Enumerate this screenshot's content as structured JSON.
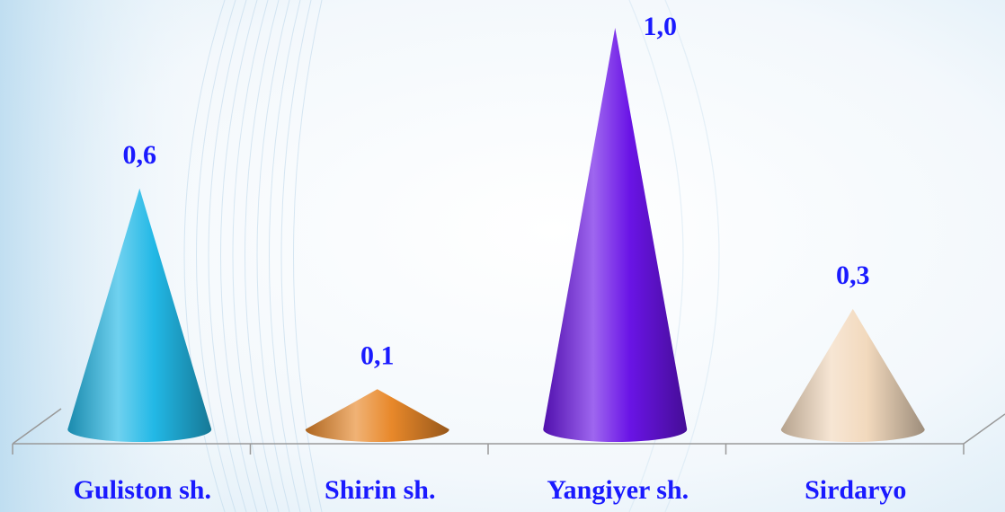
{
  "chart_data": {
    "type": "bar",
    "bar_shape": "cone",
    "categories": [
      "Guliston sh.",
      "Shirin sh.",
      "Yangiyer sh.",
      "Sirdaryo"
    ],
    "values": [
      0.6,
      0.1,
      1.0,
      0.3
    ],
    "value_labels": [
      "0,6",
      "0,1",
      "1,0",
      "0,3"
    ],
    "colors": [
      "#22b8e6",
      "#e8882a",
      "#6a14e6",
      "#f2d9bd"
    ],
    "ylim": [
      0,
      1.0
    ],
    "legend": "none",
    "grid": false
  }
}
